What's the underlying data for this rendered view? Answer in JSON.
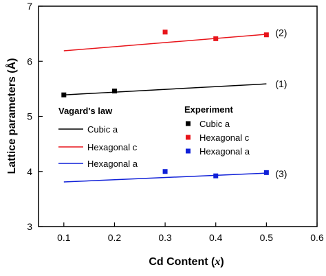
{
  "chart_data": {
    "type": "line",
    "xlabel_prefix": "Cd Content (",
    "xlabel_var": "x",
    "xlabel_suffix": ")",
    "ylabel": "Lattice parameters (Å)",
    "xlim": [
      0.05,
      0.6
    ],
    "ylim": [
      3,
      7
    ],
    "x_ticks": [
      0.1,
      0.2,
      0.3,
      0.4,
      0.5,
      0.6
    ],
    "y_ticks": [
      3,
      4,
      5,
      6,
      7
    ],
    "x_tick_labels": [
      "0.1",
      "0.2",
      "0.3",
      "0.4",
      "0.5",
      "0.6"
    ],
    "y_tick_labels": [
      "3",
      "4",
      "5",
      "6",
      "7"
    ],
    "grid": false,
    "lines_heading": "Vagard's law",
    "points_heading": "Experiment",
    "lines": [
      {
        "name": "Cubic a",
        "color": "#000000",
        "x": [
          0.1,
          0.5
        ],
        "y": [
          5.39,
          5.59
        ]
      },
      {
        "name": "Hexagonal c",
        "color": "#e8141a",
        "x": [
          0.1,
          0.5
        ],
        "y": [
          6.19,
          6.49
        ]
      },
      {
        "name": "Hexagonal a",
        "color": "#1020d8",
        "x": [
          0.1,
          0.5
        ],
        "y": [
          3.81,
          3.97
        ]
      }
    ],
    "points": [
      {
        "name": "Cubic a",
        "color": "#000000",
        "x": [
          0.1,
          0.2
        ],
        "y": [
          5.39,
          5.46
        ]
      },
      {
        "name": "Hexagonal c",
        "color": "#e8141a",
        "x": [
          0.3,
          0.4,
          0.5
        ],
        "y": [
          6.53,
          6.41,
          6.48
        ]
      },
      {
        "name": "Hexagonal a",
        "color": "#1020d8",
        "x": [
          0.3,
          0.4,
          0.5
        ],
        "y": [
          4.0,
          3.92,
          3.98
        ]
      }
    ],
    "annotations": [
      {
        "text": "(1)",
        "x": 0.5,
        "y": 5.59
      },
      {
        "text": "(2)",
        "x": 0.5,
        "y": 6.52
      },
      {
        "text": "(3)",
        "x": 0.5,
        "y": 3.96
      }
    ]
  }
}
